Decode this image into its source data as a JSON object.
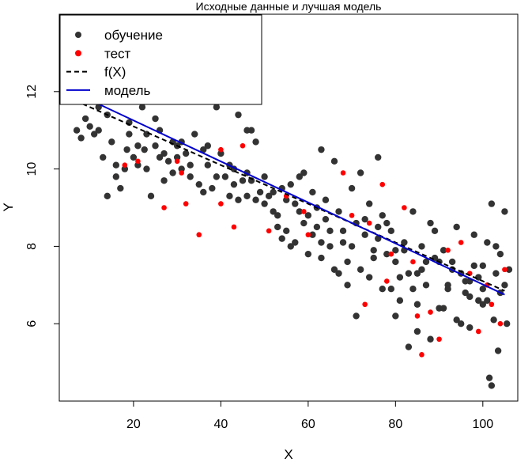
{
  "chart_data": {
    "type": "scatter",
    "title": "Исходные данные и лучшая модель",
    "xlabel": "X",
    "ylabel": "Y",
    "xlim": [
      3,
      108
    ],
    "ylim": [
      4,
      14
    ],
    "x_ticks": [
      20,
      40,
      60,
      80,
      100
    ],
    "y_ticks": [
      6,
      8,
      10,
      12
    ],
    "x_tick_labels": [
      "20",
      "40",
      "60",
      "80",
      "100"
    ],
    "y_tick_labels": [
      "6",
      "8",
      "10",
      "12"
    ],
    "legend_position": "top-left",
    "legend": [
      {
        "label": "обучение",
        "kind": "point",
        "color": "#333333"
      },
      {
        "label": "тест",
        "kind": "point",
        "color": "#ff0000"
      },
      {
        "label": "f(X)",
        "kind": "dashed-line",
        "color": "#000000"
      },
      {
        "label": "модель",
        "kind": "line",
        "color": "#0000cd"
      }
    ],
    "series": [
      {
        "name": "обучение",
        "color": "#333333",
        "points": [
          [
            7,
            11.0
          ],
          [
            8,
            10.8
          ],
          [
            9,
            11.3
          ],
          [
            10,
            11.1
          ],
          [
            11,
            10.9
          ],
          [
            12,
            11.6
          ],
          [
            13,
            10.3
          ],
          [
            14,
            9.3
          ],
          [
            15,
            10.7
          ],
          [
            16,
            9.8
          ],
          [
            17,
            9.5
          ],
          [
            18,
            10.0
          ],
          [
            18.5,
            10.5
          ],
          [
            19,
            11.2
          ],
          [
            20,
            10.3
          ],
          [
            21,
            10.1
          ],
          [
            22,
            11.6
          ],
          [
            22.5,
            10.5
          ],
          [
            23,
            10.0
          ],
          [
            24,
            9.3
          ],
          [
            25,
            10.6
          ],
          [
            26,
            11.0
          ],
          [
            27,
            10.4
          ],
          [
            28,
            10.2
          ],
          [
            29,
            10.7
          ],
          [
            30,
            10.3
          ],
          [
            31,
            10.0
          ],
          [
            32,
            10.4
          ],
          [
            33,
            9.8
          ],
          [
            34,
            10.9
          ],
          [
            35,
            9.6
          ],
          [
            36,
            10.5
          ],
          [
            37,
            10.1
          ],
          [
            38,
            9.5
          ],
          [
            39,
            11.6
          ],
          [
            40,
            10.4
          ],
          [
            41,
            9.8
          ],
          [
            42,
            10.1
          ],
          [
            43,
            9.6
          ],
          [
            44,
            9.2
          ],
          [
            45,
            9.7
          ],
          [
            46,
            9.9
          ],
          [
            47,
            11.0
          ],
          [
            48,
            10.7
          ],
          [
            49,
            9.4
          ],
          [
            50,
            9.8
          ],
          [
            51,
            9.3
          ],
          [
            52,
            8.9
          ],
          [
            53,
            8.8
          ],
          [
            54,
            9.5
          ],
          [
            55,
            8.4
          ],
          [
            56,
            9.6
          ],
          [
            57,
            8.1
          ],
          [
            58,
            9.8
          ],
          [
            59,
            8.6
          ],
          [
            60,
            7.8
          ],
          [
            61,
            8.3
          ],
          [
            62,
            9.0
          ],
          [
            63,
            7.7
          ],
          [
            64,
            8.7
          ],
          [
            65,
            8.4
          ],
          [
            66,
            7.4
          ],
          [
            67,
            8.9
          ],
          [
            68,
            8.1
          ],
          [
            69,
            7.6
          ],
          [
            70,
            8.0
          ],
          [
            71,
            8.6
          ],
          [
            72,
            7.4
          ],
          [
            73,
            8.3
          ],
          [
            74,
            9.1
          ],
          [
            75,
            7.9
          ],
          [
            76,
            8.2
          ],
          [
            77,
            8.8
          ],
          [
            78,
            7.8
          ],
          [
            79,
            6.9
          ],
          [
            80,
            7.6
          ],
          [
            81,
            6.6
          ],
          [
            82,
            7.9
          ],
          [
            83,
            5.4
          ],
          [
            84,
            6.9
          ],
          [
            85,
            5.8
          ],
          [
            86,
            7.4
          ],
          [
            87,
            7.0
          ],
          [
            88,
            5.6
          ],
          [
            89,
            7.7
          ],
          [
            90,
            6.4
          ],
          [
            91,
            7.9
          ],
          [
            92,
            6.9
          ],
          [
            93,
            7.4
          ],
          [
            94,
            6.1
          ],
          [
            95,
            7.3
          ],
          [
            96,
            6.8
          ],
          [
            97,
            6.7
          ],
          [
            98,
            7.5
          ],
          [
            99,
            6.6
          ],
          [
            100,
            6.9
          ],
          [
            101,
            6.6
          ],
          [
            102,
            9.1
          ],
          [
            102.5,
            6.1
          ],
          [
            103,
            7.3
          ],
          [
            104,
            6.8
          ],
          [
            105,
            8.9
          ],
          [
            105.5,
            6.0
          ],
          [
            106,
            7.4
          ],
          [
            101.5,
            4.6
          ],
          [
            102,
            4.4
          ],
          [
            103.5,
            5.3
          ],
          [
            44,
            11.4
          ],
          [
            46,
            11.0
          ],
          [
            63,
            10.5
          ],
          [
            66,
            10.2
          ],
          [
            76,
            10.3
          ],
          [
            70,
            9.5
          ],
          [
            72,
            9.9
          ],
          [
            59,
            9.9
          ],
          [
            55,
            9.2
          ],
          [
            52,
            9.4
          ],
          [
            84,
            8.9
          ],
          [
            88,
            8.6
          ],
          [
            94,
            8.5
          ],
          [
            98,
            8.3
          ],
          [
            79,
            8.4
          ],
          [
            82,
            8.1
          ],
          [
            86,
            8.0
          ],
          [
            90,
            7.6
          ],
          [
            96,
            7.1
          ],
          [
            100,
            7.5
          ],
          [
            67,
            7.3
          ],
          [
            69,
            7.0
          ],
          [
            74,
            7.2
          ],
          [
            77,
            6.9
          ],
          [
            80,
            6.2
          ],
          [
            85,
            6.5
          ],
          [
            91,
            6.4
          ],
          [
            95,
            6.0
          ],
          [
            97,
            5.9
          ],
          [
            89,
            8.4
          ],
          [
            83,
            7.3
          ],
          [
            75,
            7.7
          ],
          [
            71,
            6.2
          ],
          [
            64,
            9.2
          ],
          [
            62,
            8.5
          ],
          [
            58,
            8.9
          ],
          [
            56,
            8.0
          ],
          [
            54,
            8.2
          ],
          [
            48,
            9.2
          ],
          [
            46,
            9.3
          ],
          [
            42,
            9.3
          ],
          [
            39,
            9.8
          ],
          [
            36,
            9.4
          ],
          [
            33,
            10.1
          ],
          [
            30,
            10.6
          ],
          [
            27,
            9.7
          ],
          [
            25,
            11.3
          ],
          [
            23,
            10.9
          ],
          [
            21,
            10.6
          ],
          [
            19,
            10.9
          ],
          [
            16,
            10.1
          ],
          [
            14,
            11.4
          ],
          [
            12,
            11.0
          ],
          [
            60,
            8.8
          ],
          [
            65,
            8.0
          ],
          [
            73,
            8.7
          ],
          [
            78,
            8.6
          ],
          [
            81,
            7.2
          ],
          [
            87,
            7.6
          ],
          [
            93,
            7.6
          ],
          [
            99,
            7.2
          ],
          [
            104,
            7.8
          ],
          [
            101,
            8.1
          ],
          [
            68,
            8.4
          ],
          [
            57,
            9.1
          ],
          [
            53,
            8.5
          ],
          [
            50,
            9.1
          ],
          [
            47,
            9.7
          ],
          [
            43,
            10.0
          ],
          [
            37,
            10.6
          ],
          [
            31,
            10.7
          ],
          [
            29,
            9.9
          ],
          [
            26,
            10.3
          ],
          [
            61,
            9.4
          ],
          [
            63,
            8.1
          ],
          [
            76,
            8.5
          ],
          [
            80,
            7.9
          ],
          [
            85,
            7.3
          ],
          [
            92,
            7.0
          ],
          [
            97,
            7.1
          ],
          [
            103,
            8.0
          ],
          [
            105,
            7.0
          ],
          [
            100,
            6.5
          ]
        ]
      },
      {
        "name": "тест",
        "color": "#ff0000",
        "points": [
          [
            18,
            10.1
          ],
          [
            21,
            10.2
          ],
          [
            27,
            9.0
          ],
          [
            30,
            10.2
          ],
          [
            31,
            9.9
          ],
          [
            32,
            9.1
          ],
          [
            35,
            8.3
          ],
          [
            40,
            10.5
          ],
          [
            43,
            8.5
          ],
          [
            45,
            10.6
          ],
          [
            51,
            8.4
          ],
          [
            55,
            9.3
          ],
          [
            59,
            8.9
          ],
          [
            60,
            8.3
          ],
          [
            68,
            9.9
          ],
          [
            70,
            8.8
          ],
          [
            73,
            6.5
          ],
          [
            74,
            8.6
          ],
          [
            77,
            9.6
          ],
          [
            79,
            7.8
          ],
          [
            82,
            9.0
          ],
          [
            84,
            7.6
          ],
          [
            85,
            6.2
          ],
          [
            86,
            5.2
          ],
          [
            88,
            6.3
          ],
          [
            90,
            5.6
          ],
          [
            92,
            7.9
          ],
          [
            95,
            8.1
          ],
          [
            97,
            7.3
          ],
          [
            99,
            5.8
          ],
          [
            101,
            7.0
          ],
          [
            102,
            6.5
          ],
          [
            104,
            6.0
          ],
          [
            105,
            7.4
          ],
          [
            40,
            9.1
          ],
          [
            78,
            7.1
          ]
        ]
      },
      {
        "name": "f(X)",
        "kind": "dashed-line",
        "color": "#000000",
        "x": [
          5,
          105
        ],
        "y": [
          11.85,
          6.85
        ]
      },
      {
        "name": "модель",
        "kind": "line",
        "color": "#0000cd",
        "x": [
          5,
          105
        ],
        "y": [
          12.05,
          6.75
        ]
      }
    ]
  }
}
